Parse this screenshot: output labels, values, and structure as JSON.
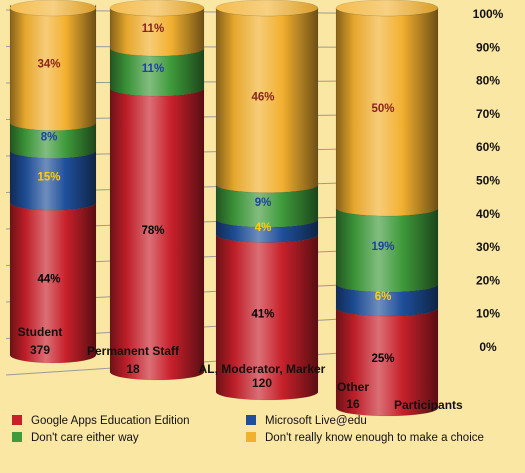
{
  "chart_data": {
    "type": "bar",
    "stacked": true,
    "orientation": "vertical",
    "style": "3d-cylinder",
    "categories": [
      {
        "name": "Student",
        "count": "379"
      },
      {
        "name": "Permanent Staff",
        "count": "18"
      },
      {
        "name": "AL, Moderator,  Marker",
        "count": "120"
      },
      {
        "name": "Other",
        "count": "16"
      }
    ],
    "series": [
      {
        "name": "Google Apps Education Edition",
        "color": "#c8202a",
        "values": [
          44,
          78,
          41,
          25
        ],
        "labels": [
          "44%",
          "78%",
          "41%",
          "25%"
        ],
        "label_color": "#000000"
      },
      {
        "name": "Microsoft Live@edu",
        "color": "#1f4f9a",
        "values": [
          15,
          0,
          4,
          6
        ],
        "labels": [
          "15%",
          "",
          "4%",
          "6%"
        ],
        "label_color": "#ffd000"
      },
      {
        "name": "Don't care either way",
        "color": "#3e9a3a",
        "values": [
          8,
          11,
          9,
          19
        ],
        "labels": [
          "8%",
          "11%",
          "9%",
          "19%"
        ],
        "label_color": "#1c3fa8"
      },
      {
        "name": "Don't really know enough to make a choice",
        "color": "#f2b02f",
        "values": [
          34,
          11,
          46,
          50
        ],
        "labels": [
          "34%",
          "11%",
          "46%",
          "50%"
        ],
        "label_color": "#8a2318"
      }
    ],
    "yaxis": {
      "min": 0,
      "max": 100,
      "ticks": [
        "0%",
        "10%",
        "20%",
        "30%",
        "40%",
        "50%",
        "60%",
        "70%",
        "80%",
        "90%",
        "100%"
      ]
    },
    "xlabel": "Participants",
    "grid": true,
    "legend_position": "bottom"
  }
}
